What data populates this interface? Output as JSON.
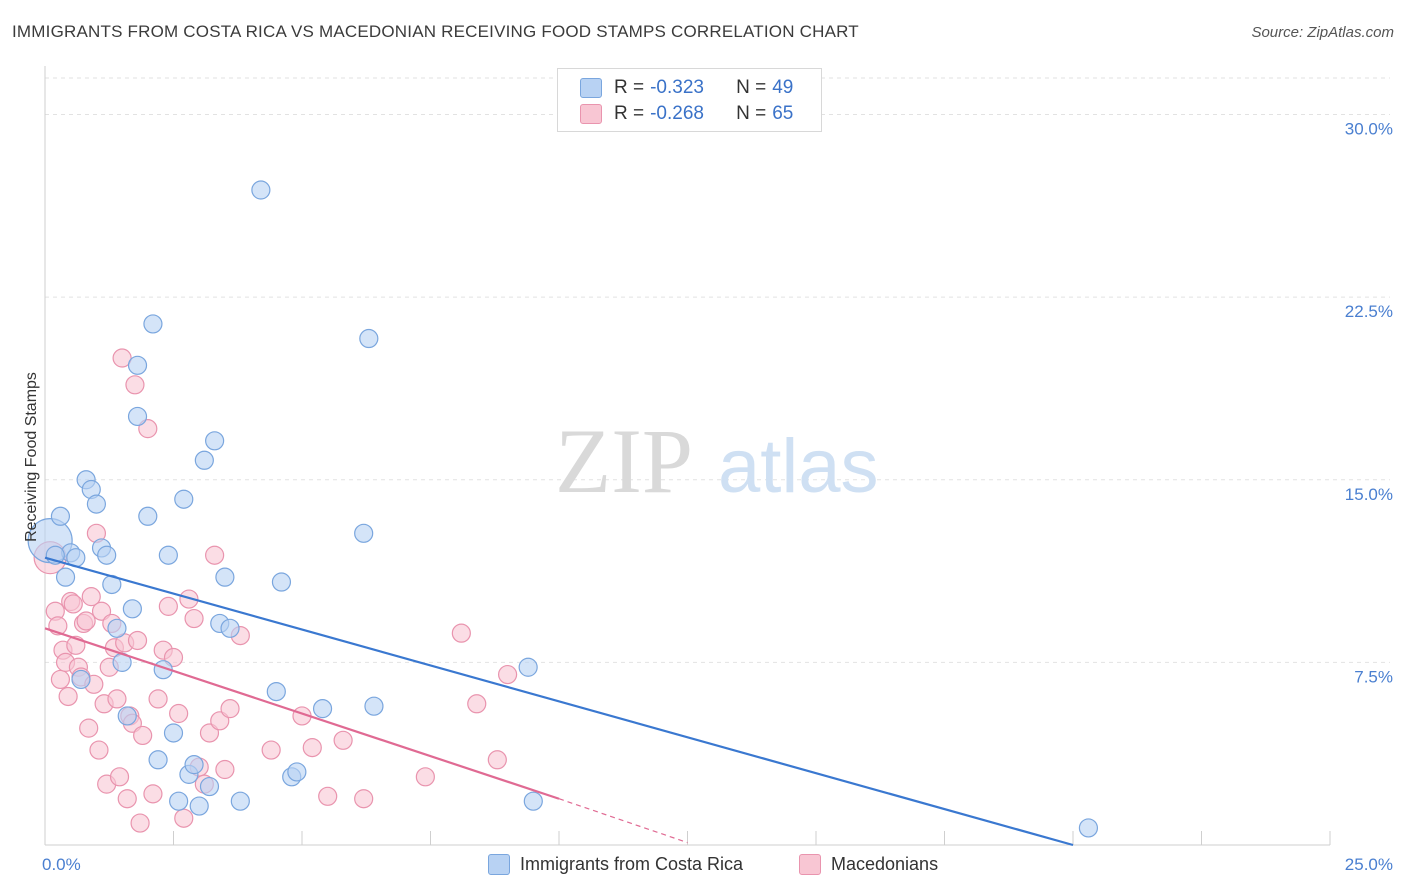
{
  "title": "IMMIGRANTS FROM COSTA RICA VS MACEDONIAN RECEIVING FOOD STAMPS CORRELATION CHART",
  "source": "Source: ZipAtlas.com",
  "colors": {
    "blue_fill": "#b8d2f3",
    "blue_stroke": "#7aa6de",
    "blue_line": "#3a78d0",
    "pink_fill": "#f8c6d3",
    "pink_stroke": "#e994ae",
    "pink_line": "#e06a93",
    "grid": "#e2e2e2",
    "tick_text": "#4a7fd0"
  },
  "legend": {
    "rows": [
      {
        "r_label": "R = ",
        "r_value": "-0.323",
        "n_label": "N = ",
        "n_value": "49"
      },
      {
        "r_label": "R = ",
        "r_value": "-0.268",
        "n_label": "N = ",
        "n_value": "65"
      }
    ]
  },
  "watermark": {
    "zip": "ZIP",
    "atlas": "atlas"
  },
  "chart_data": {
    "type": "scatter",
    "title": "IMMIGRANTS FROM COSTA RICA VS MACEDONIAN RECEIVING FOOD STAMPS CORRELATION CHART",
    "xlabel": "",
    "ylabel": "Receiving Food Stamps",
    "xlim": [
      0,
      25
    ],
    "ylim": [
      0,
      31.5
    ],
    "x_tick_labels": [
      "0.0%",
      "25.0%"
    ],
    "y_ticks": [
      7.5,
      15.0,
      22.5,
      30.0
    ],
    "y_tick_labels": [
      "7.5%",
      "15.0%",
      "22.5%",
      "30.0%"
    ],
    "legend_position": "top-center",
    "series": [
      {
        "name": "Immigrants from Costa Rica",
        "color": "#b8d2f3",
        "r": -0.323,
        "n": 49,
        "trend": {
          "x0": 0.0,
          "y0": 11.8,
          "x1": 20.0,
          "y1": 0.0
        },
        "points": [
          [
            0.1,
            12.5,
            22
          ],
          [
            0.3,
            13.5,
            9
          ],
          [
            0.5,
            12.0,
            9
          ],
          [
            0.8,
            15.0,
            9
          ],
          [
            0.9,
            14.6,
            9
          ],
          [
            1.0,
            14.0,
            9
          ],
          [
            1.1,
            12.2,
            9
          ],
          [
            1.2,
            11.9,
            9
          ],
          [
            0.4,
            11.0,
            9
          ],
          [
            0.6,
            11.8,
            9
          ],
          [
            1.3,
            10.7,
            9
          ],
          [
            1.4,
            8.9,
            9
          ],
          [
            1.5,
            7.5,
            9
          ],
          [
            1.6,
            5.3,
            9
          ],
          [
            1.7,
            9.7,
            9
          ],
          [
            1.8,
            19.7,
            9
          ],
          [
            1.8,
            17.6,
            9
          ],
          [
            2.0,
            13.5,
            9
          ],
          [
            2.1,
            21.4,
            9
          ],
          [
            2.2,
            3.5,
            9
          ],
          [
            2.3,
            7.2,
            9
          ],
          [
            2.4,
            11.9,
            9
          ],
          [
            2.5,
            4.6,
            9
          ],
          [
            2.6,
            1.8,
            9
          ],
          [
            2.7,
            14.2,
            9
          ],
          [
            2.8,
            2.9,
            9
          ],
          [
            2.9,
            3.3,
            9
          ],
          [
            3.0,
            1.6,
            9
          ],
          [
            3.1,
            15.8,
            9
          ],
          [
            3.2,
            2.4,
            9
          ],
          [
            3.3,
            16.6,
            9
          ],
          [
            3.4,
            9.1,
            9
          ],
          [
            3.5,
            11.0,
            9
          ],
          [
            3.6,
            8.9,
            9
          ],
          [
            3.8,
            1.8,
            9
          ],
          [
            4.2,
            26.9,
            9
          ],
          [
            4.5,
            6.3,
            9
          ],
          [
            4.6,
            10.8,
            9
          ],
          [
            4.8,
            2.8,
            9
          ],
          [
            4.9,
            3.0,
            9
          ],
          [
            5.4,
            5.6,
            9
          ],
          [
            6.2,
            12.8,
            9
          ],
          [
            6.3,
            20.8,
            9
          ],
          [
            6.4,
            5.7,
            9
          ],
          [
            9.4,
            7.3,
            9
          ],
          [
            9.5,
            1.8,
            9
          ],
          [
            20.3,
            0.7,
            9
          ],
          [
            0.2,
            11.9,
            9
          ],
          [
            0.7,
            6.8,
            9
          ]
        ]
      },
      {
        "name": "Macedonians",
        "color": "#f8c6d3",
        "r": -0.268,
        "n": 65,
        "trend": {
          "x0": 0.0,
          "y0": 8.9,
          "x1": 10.0,
          "y1": 1.9,
          "dash_to_x": 12.5,
          "dash_to_y": 0.1
        },
        "points": [
          [
            0.1,
            11.8,
            16
          ],
          [
            0.2,
            9.6,
            9
          ],
          [
            0.25,
            9.0,
            9
          ],
          [
            0.3,
            6.8,
            9
          ],
          [
            0.35,
            8.0,
            9
          ],
          [
            0.4,
            7.5,
            9
          ],
          [
            0.45,
            6.1,
            9
          ],
          [
            0.5,
            10.0,
            9
          ],
          [
            0.55,
            9.9,
            9
          ],
          [
            0.6,
            8.2,
            9
          ],
          [
            0.65,
            7.3,
            9
          ],
          [
            0.7,
            6.9,
            9
          ],
          [
            0.75,
            9.1,
            9
          ],
          [
            0.8,
            9.2,
            9
          ],
          [
            0.85,
            4.8,
            9
          ],
          [
            0.9,
            10.2,
            9
          ],
          [
            0.95,
            6.6,
            9
          ],
          [
            1.0,
            12.8,
            9
          ],
          [
            1.05,
            3.9,
            9
          ],
          [
            1.1,
            9.6,
            9
          ],
          [
            1.15,
            5.8,
            9
          ],
          [
            1.2,
            2.5,
            9
          ],
          [
            1.25,
            7.3,
            9
          ],
          [
            1.3,
            9.1,
            9
          ],
          [
            1.35,
            8.1,
            9
          ],
          [
            1.4,
            6.0,
            9
          ],
          [
            1.45,
            2.8,
            9
          ],
          [
            1.5,
            20.0,
            9
          ],
          [
            1.55,
            8.3,
            9
          ],
          [
            1.6,
            1.9,
            9
          ],
          [
            1.65,
            5.3,
            9
          ],
          [
            1.7,
            5.0,
            9
          ],
          [
            1.75,
            18.9,
            9
          ],
          [
            1.8,
            8.4,
            9
          ],
          [
            1.85,
            0.9,
            9
          ],
          [
            1.9,
            4.5,
            9
          ],
          [
            2.0,
            17.1,
            9
          ],
          [
            2.1,
            2.1,
            9
          ],
          [
            2.2,
            6.0,
            9
          ],
          [
            2.3,
            8.0,
            9
          ],
          [
            2.4,
            9.8,
            9
          ],
          [
            2.5,
            7.7,
            9
          ],
          [
            2.6,
            5.4,
            9
          ],
          [
            2.7,
            1.1,
            9
          ],
          [
            2.8,
            10.1,
            9
          ],
          [
            2.9,
            9.3,
            9
          ],
          [
            3.0,
            3.2,
            9
          ],
          [
            3.1,
            2.5,
            9
          ],
          [
            3.2,
            4.6,
            9
          ],
          [
            3.3,
            11.9,
            9
          ],
          [
            3.4,
            5.1,
            9
          ],
          [
            3.5,
            3.1,
            9
          ],
          [
            3.6,
            5.6,
            9
          ],
          [
            3.8,
            8.6,
            9
          ],
          [
            4.4,
            3.9,
            9
          ],
          [
            5.0,
            5.3,
            9
          ],
          [
            5.2,
            4.0,
            9
          ],
          [
            5.5,
            2.0,
            9
          ],
          [
            5.8,
            4.3,
            9
          ],
          [
            6.2,
            1.9,
            9
          ],
          [
            7.4,
            2.8,
            9
          ],
          [
            8.1,
            8.7,
            9
          ],
          [
            8.4,
            5.8,
            9
          ],
          [
            8.8,
            3.5,
            9
          ],
          [
            9.0,
            7.0,
            9
          ]
        ]
      }
    ]
  }
}
